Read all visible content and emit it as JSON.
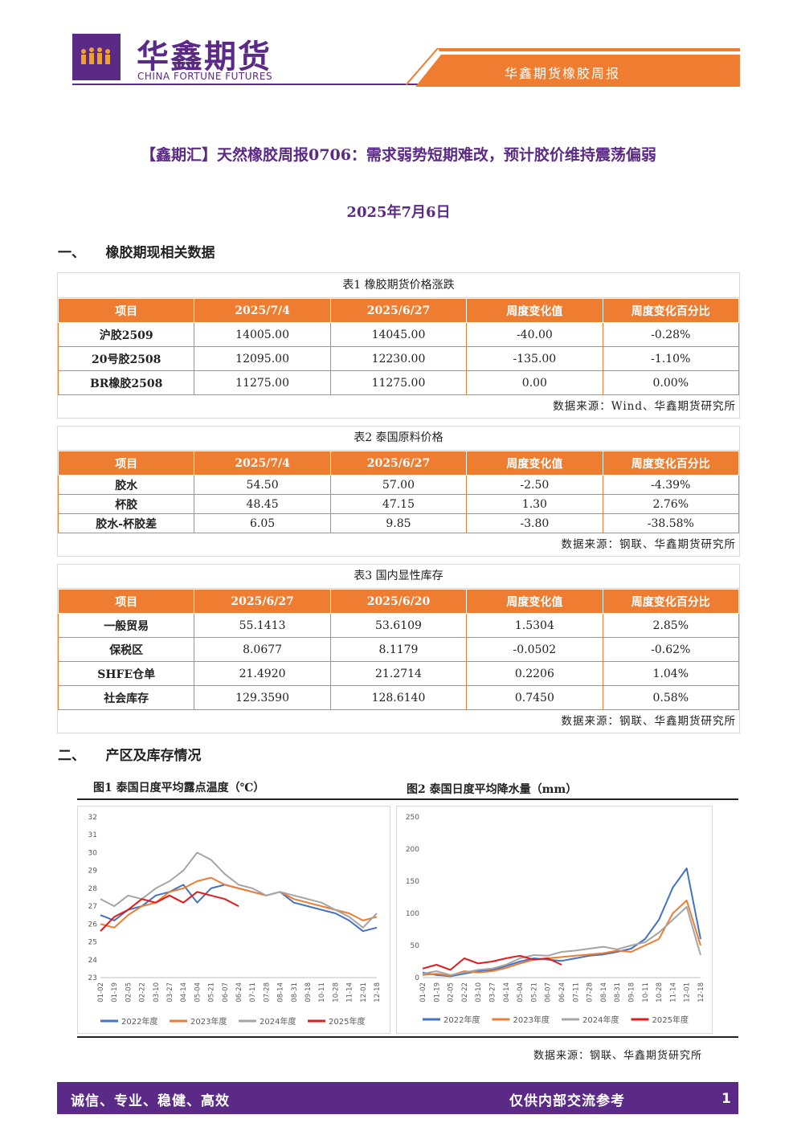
{
  "header": {
    "logo_cn": "华鑫期货",
    "logo_en": "CHINA FORTUNE FUTURES",
    "report_name": "华鑫期货橡胶周报"
  },
  "title": "【鑫期汇】天然橡胶周报0706：需求弱势短期难改，预计胶价维持震荡偏弱",
  "date": "2025年7月6日",
  "section1": "一、　　橡胶期现相关数据",
  "section2": "二、　　产区及库存情况",
  "table1": {
    "caption": "表1 橡胶期货价格涨跌",
    "headers": [
      "项目",
      "2025/7/4",
      "2025/6/27",
      "周度变化值",
      "周度变化百分比"
    ],
    "rows": [
      [
        "沪胶2509",
        "14005.00",
        "14045.00",
        "-40.00",
        "-0.28%"
      ],
      [
        "20号胶2508",
        "12095.00",
        "12230.00",
        "-135.00",
        "-1.10%"
      ],
      [
        "BR橡胶2508",
        "11275.00",
        "11275.00",
        "0.00",
        "0.00%"
      ]
    ],
    "source": "数据来源：Wind、华鑫期货研究所"
  },
  "table2": {
    "caption": "表2 泰国原料价格",
    "headers": [
      "项目",
      "2025/7/4",
      "2025/6/27",
      "周度变化值",
      "周度变化百分比"
    ],
    "rows": [
      [
        "胶水",
        "54.50",
        "57.00",
        "-2.50",
        "-4.39%"
      ],
      [
        "杯胶",
        "48.45",
        "47.15",
        "1.30",
        "2.76%"
      ],
      [
        "胶水-杯胶差",
        "6.05",
        "9.85",
        "-3.80",
        "-38.58%"
      ]
    ],
    "source": "数据来源：钢联、华鑫期货研究所"
  },
  "table3": {
    "caption": "表3 国内显性库存",
    "headers": [
      "项目",
      "2025/6/27",
      "2025/6/20",
      "周度变化值",
      "周度变化百分比"
    ],
    "rows": [
      [
        "一般贸易",
        "55.1413",
        "53.6109",
        "1.5304",
        "2.85%"
      ],
      [
        "保税区",
        "8.0677",
        "8.1179",
        "-0.0502",
        "-0.62%"
      ],
      [
        "SHFE仓单",
        "21.4920",
        "21.2714",
        "0.2206",
        "1.04%"
      ],
      [
        "社会库存",
        "129.3590",
        "128.6140",
        "0.7450",
        "0.58%"
      ]
    ],
    "source": "数据来源：钢联、华鑫期货研究所"
  },
  "chart_data": [
    {
      "type": "line",
      "title": "图1 泰国日度平均露点温度（℃）",
      "x": [
        "01-02",
        "01-19",
        "02-05",
        "02-22",
        "03-10",
        "03-27",
        "04-14",
        "05-04",
        "05-21",
        "06-07",
        "06-24",
        "07-11",
        "07-28",
        "08-14",
        "08-31",
        "09-18",
        "10-11",
        "10-28",
        "11-14",
        "12-01",
        "12-18"
      ],
      "ylim": [
        23,
        32
      ],
      "yticks": [
        23,
        24,
        25,
        26,
        27,
        28,
        29,
        30,
        31,
        32
      ],
      "series": [
        {
          "name": "2022年度",
          "color": "#4472c4",
          "values": [
            26.5,
            26.2,
            26.8,
            27.0,
            27.6,
            27.8,
            28.2,
            27.2,
            28.0,
            28.2,
            28.0,
            27.8,
            27.6,
            27.8,
            27.2,
            27.0,
            26.8,
            26.6,
            26.2,
            25.6,
            25.8
          ]
        },
        {
          "name": "2023年度",
          "color": "#ed7d31",
          "values": [
            26.0,
            25.8,
            26.5,
            27.0,
            27.2,
            27.8,
            28.0,
            28.4,
            28.6,
            28.2,
            28.0,
            27.8,
            27.6,
            27.8,
            27.4,
            27.2,
            27.0,
            26.8,
            26.6,
            26.2,
            26.4
          ]
        },
        {
          "name": "2024年度",
          "color": "#a5a5a5",
          "values": [
            27.4,
            27.0,
            27.6,
            27.4,
            28.0,
            28.4,
            29.0,
            30.0,
            29.6,
            28.8,
            28.2,
            28.0,
            27.6,
            27.8,
            27.6,
            27.4,
            27.2,
            26.8,
            26.4,
            25.8,
            26.6
          ]
        },
        {
          "name": "2025年度",
          "color": "#e31a1c",
          "values": [
            25.6,
            26.4,
            26.8,
            27.4,
            27.2,
            27.6,
            27.2,
            27.8,
            27.6,
            27.4,
            27.0,
            null,
            null,
            null,
            null,
            null,
            null,
            null,
            null,
            null,
            null
          ]
        }
      ]
    },
    {
      "type": "line",
      "title": "图2 泰国日度平均降水量（mm）",
      "x": [
        "01-02",
        "01-19",
        "02-05",
        "02-22",
        "03-10",
        "03-27",
        "04-14",
        "05-04",
        "05-21",
        "06-07",
        "06-24",
        "07-11",
        "07-28",
        "08-14",
        "08-31",
        "09-18",
        "10-11",
        "10-28",
        "11-14",
        "12-01",
        "12-18"
      ],
      "ylim": [
        0,
        250
      ],
      "yticks": [
        0,
        50,
        100,
        150,
        200,
        250
      ],
      "series": [
        {
          "name": "2022年度",
          "color": "#4472c4",
          "values": [
            8,
            4,
            2,
            6,
            10,
            12,
            18,
            25,
            30,
            28,
            26,
            30,
            34,
            36,
            40,
            45,
            60,
            90,
            140,
            170,
            60
          ]
        },
        {
          "name": "2023年度",
          "color": "#ed7d31",
          "values": [
            4,
            6,
            3,
            10,
            8,
            10,
            15,
            22,
            28,
            30,
            32,
            34,
            36,
            38,
            42,
            40,
            50,
            60,
            100,
            120,
            50
          ]
        },
        {
          "name": "2024年度",
          "color": "#a5a5a5",
          "values": [
            6,
            10,
            4,
            8,
            12,
            14,
            20,
            30,
            35,
            34,
            40,
            42,
            45,
            48,
            44,
            50,
            55,
            70,
            90,
            110,
            35
          ]
        },
        {
          "name": "2025年度",
          "color": "#e31a1c",
          "values": [
            14,
            20,
            12,
            30,
            22,
            25,
            30,
            34,
            28,
            30,
            20,
            null,
            null,
            null,
            null,
            null,
            null,
            null,
            null,
            null,
            null
          ]
        }
      ]
    }
  ],
  "chart_source": "数据来源：钢联、华鑫期货研究所",
  "footer": {
    "left": "诚信、专业、稳健、高效",
    "right": "仅供内部交流参考",
    "page": "1"
  }
}
